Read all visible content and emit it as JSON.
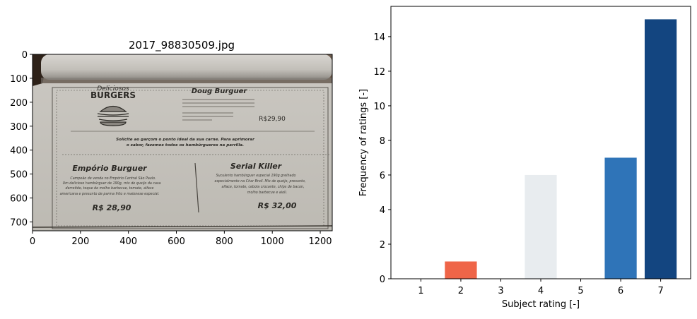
{
  "left_panel": {
    "title": "2017_98830509.jpg",
    "x_ticks": [
      0,
      200,
      400,
      600,
      800,
      1000,
      1200
    ],
    "y_ticks": [
      0,
      100,
      200,
      300,
      400,
      500,
      600,
      700
    ],
    "image_extent": {
      "width": 1250,
      "height": 737
    },
    "photo": {
      "header_left_script": "Deliciosos",
      "header_left": "BURGERS",
      "header_right": "Doug Burguer",
      "header_right_price": "R$29,90",
      "tagline_1": "Solicite ao garçom o ponto ideal da sua carne. Para aprimorar",
      "tagline_2": "o sabor, fazemos todos os hambúrgueres na parrilla.",
      "left_item_name": "Empório Burguer",
      "left_item_desc_1": "Campeão de venda no Empório Central São Paulo.",
      "left_item_desc_2": "Um delicioso hambúrguer de 190g, mix de queijo da casa",
      "left_item_desc_3": "derretido, toque de molho barbecue, tomate, alface",
      "left_item_desc_4": "americana e presunto de parma frito e maionese especial.",
      "left_item_price": "R$ 28,90",
      "right_item_name": "Serial Killer",
      "right_item_desc_1": "Suculento hambúrguer especial 190g grelhado",
      "right_item_desc_2": "especialmente na Char Broil. Mix de queijo, presunto,",
      "right_item_desc_3": "alface, tomate, cebola crocante, chips de bacon,",
      "right_item_desc_4": "molho barbecue e aioli.",
      "right_item_price": "R$ 32,00"
    }
  },
  "chart_data": {
    "type": "bar",
    "categories": [
      "1",
      "2",
      "3",
      "4",
      "5",
      "6",
      "7"
    ],
    "values": [
      0,
      1,
      0,
      6,
      0,
      7,
      15
    ],
    "bar_colors": [
      "#b2182b",
      "#ef6548",
      "#f4a582",
      "#e8ecef",
      "#92c5de",
      "#2f74b8",
      "#134580"
    ],
    "xlabel": "Subject rating [-]",
    "ylabel": "Frequency of ratings [-]",
    "ylim": [
      0,
      15.75
    ],
    "y_ticks": [
      0,
      2,
      4,
      6,
      8,
      10,
      12,
      14
    ],
    "grid": false
  }
}
